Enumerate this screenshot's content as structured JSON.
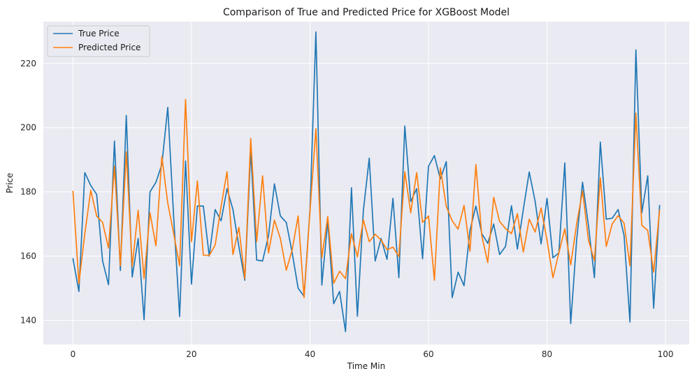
{
  "chart_data": {
    "type": "line",
    "title": "Comparison of True and Predicted Price for XGBoost Model",
    "xlabel": "Time Min",
    "ylabel": "Price",
    "xlim": [
      -5,
      104
    ],
    "ylim": [
      132.5,
      233
    ],
    "xticks": [
      0,
      20,
      40,
      60,
      80,
      100
    ],
    "yticks": [
      140,
      160,
      180,
      200,
      220
    ],
    "grid": true,
    "legend_position": "top-left",
    "x": [
      0,
      1,
      2,
      3,
      4,
      5,
      6,
      7,
      8,
      9,
      10,
      11,
      12,
      13,
      14,
      15,
      16,
      17,
      18,
      19,
      20,
      21,
      22,
      23,
      24,
      25,
      26,
      27,
      28,
      29,
      30,
      31,
      32,
      33,
      34,
      35,
      36,
      37,
      38,
      39,
      40,
      41,
      42,
      43,
      44,
      45,
      46,
      47,
      48,
      49,
      50,
      51,
      52,
      53,
      54,
      55,
      56,
      57,
      58,
      59,
      60,
      61,
      62,
      63,
      64,
      65,
      66,
      67,
      68,
      69,
      70,
      71,
      72,
      73,
      74,
      75,
      76,
      77,
      78,
      79,
      80,
      81,
      82,
      83,
      84,
      85,
      86,
      87,
      88,
      89,
      90,
      91,
      92,
      93,
      94,
      95,
      96,
      97,
      98,
      99
    ],
    "series": [
      {
        "name": "True Price",
        "color": "#1f77b4",
        "values": [
          159.2,
          149.0,
          186.0,
          182.0,
          179.2,
          158.5,
          151.1,
          195.8,
          155.5,
          203.8,
          153.5,
          165.5,
          140.2,
          180.0,
          183.0,
          188.5,
          206.3,
          172.0,
          141.2,
          189.6,
          151.3,
          175.6,
          175.6,
          160.0,
          174.5,
          171.0,
          181.0,
          174.5,
          163.0,
          152.5,
          192.8,
          158.8,
          158.5,
          166.3,
          182.5,
          172.5,
          170.5,
          161.0,
          150.0,
          147.5,
          174.4,
          229.8,
          151.0,
          171.0,
          145.2,
          149.0,
          136.5,
          181.3,
          141.3,
          174.0,
          190.5,
          158.5,
          165.5,
          159.0,
          178.0,
          153.3,
          200.5,
          177.0,
          181.0,
          159.2,
          188.0,
          191.3,
          184.0,
          189.4,
          147.1,
          155.0,
          150.8,
          168.0,
          175.6,
          167.0,
          164.0,
          170.0,
          160.5,
          163.0,
          175.7,
          162.2,
          174.5,
          186.2,
          177.0,
          163.8,
          178.0,
          159.5,
          161.0,
          189.0,
          139.0,
          165.0,
          183.0,
          169.5,
          153.3,
          195.5,
          171.5,
          171.8,
          174.5,
          166.5,
          139.5,
          224.2,
          173.5,
          185.0,
          143.8,
          175.8
        ]
      },
      {
        "name": "Predicted Price",
        "color": "#ff7f0e",
        "values": [
          180.2,
          151.5,
          167.0,
          180.5,
          172.5,
          170.5,
          162.5,
          188.0,
          157.0,
          192.5,
          156.8,
          174.3,
          153.0,
          173.5,
          163.2,
          191.0,
          176.5,
          167.0,
          157.0,
          208.8,
          164.5,
          183.4,
          160.3,
          160.2,
          163.5,
          175.5,
          186.3,
          160.5,
          169.0,
          153.0,
          196.6,
          164.5,
          185.0,
          161.0,
          171.2,
          165.5,
          155.6,
          162.0,
          172.5,
          147.1,
          174.0,
          199.7,
          159.5,
          172.3,
          151.5,
          155.3,
          153.0,
          167.0,
          159.8,
          171.3,
          164.5,
          166.8,
          165.0,
          162.0,
          162.8,
          159.9,
          186.3,
          173.5,
          186.0,
          170.5,
          172.5,
          152.5,
          187.5,
          175.5,
          171.0,
          168.4,
          175.8,
          161.5,
          188.5,
          166.3,
          158.0,
          178.3,
          170.8,
          168.6,
          167.0,
          173.2,
          161.3,
          171.5,
          167.5,
          175.0,
          165.0,
          153.3,
          161.0,
          168.5,
          157.3,
          170.0,
          180.3,
          165.0,
          158.6,
          184.4,
          163.0,
          170.0,
          172.6,
          170.3,
          157.0,
          204.5,
          169.6,
          168.0,
          155.0,
          174.3
        ]
      }
    ]
  }
}
